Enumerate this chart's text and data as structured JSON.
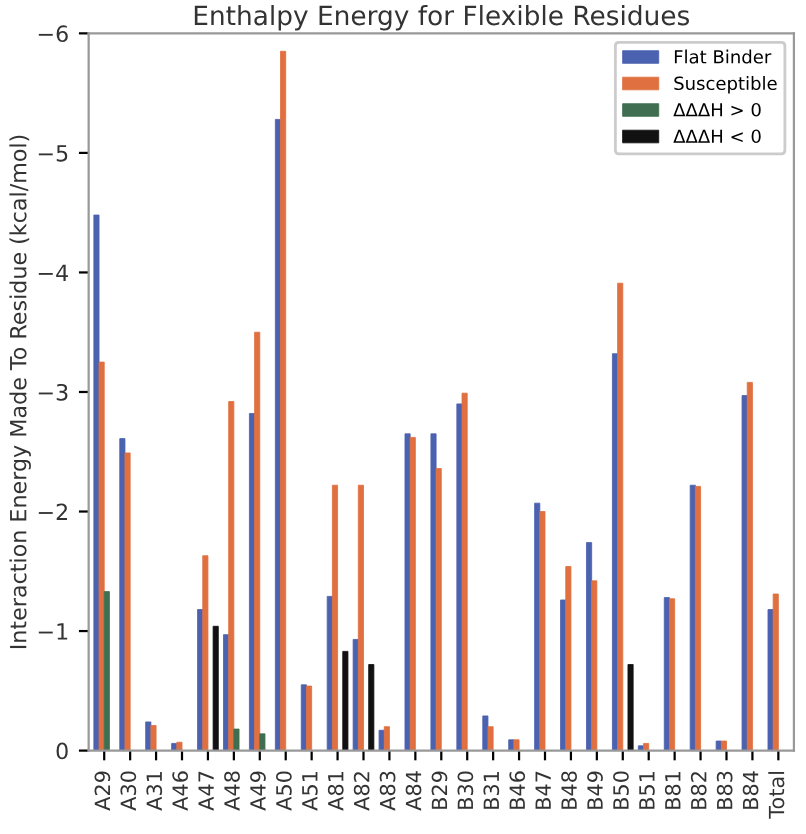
{
  "chart_data": {
    "type": "bar",
    "title": "Enthalpy Energy for Flexible Residues",
    "ylabel": "Interaction Energy Made To Residue (kcal/mol)",
    "categories": [
      "A29",
      "A30",
      "A31",
      "A46",
      "A47",
      "A48",
      "A49",
      "A50",
      "A51",
      "A81",
      "A82",
      "A83",
      "A84",
      "B29",
      "B30",
      "B31",
      "B46",
      "B47",
      "B48",
      "B49",
      "B50",
      "B51",
      "B81",
      "B82",
      "B83",
      "B84",
      "Total"
    ],
    "series": [
      {
        "name": "Flat Binder",
        "color": "#4b62b0",
        "values": [
          -4.48,
          -2.61,
          -0.24,
          -0.06,
          -1.18,
          -0.97,
          -2.82,
          -5.28,
          -0.55,
          -1.29,
          -0.93,
          -0.17,
          -2.65,
          -2.65,
          -2.9,
          -0.29,
          -0.09,
          -2.07,
          -1.26,
          -1.74,
          -3.32,
          -0.04,
          -1.28,
          -2.22,
          -0.08,
          -2.97,
          -1.18
        ]
      },
      {
        "name": "Susceptible",
        "color": "#e07040",
        "values": [
          -3.25,
          -2.49,
          -0.21,
          -0.07,
          -1.63,
          -2.92,
          -3.5,
          -5.85,
          -0.54,
          -2.22,
          -2.22,
          -0.2,
          -2.62,
          -2.36,
          -2.99,
          -0.2,
          -0.09,
          -2.0,
          -1.54,
          -1.42,
          -3.91,
          -0.06,
          -1.27,
          -2.21,
          -0.08,
          -3.08,
          -1.31
        ]
      },
      {
        "name": "ΔΔΔH > 0",
        "color": "#3f6e50",
        "values": [
          -1.33,
          null,
          null,
          null,
          null,
          -0.18,
          -0.14,
          null,
          null,
          null,
          null,
          null,
          null,
          null,
          null,
          null,
          null,
          null,
          null,
          null,
          null,
          null,
          null,
          null,
          null,
          null,
          null
        ]
      },
      {
        "name": "ΔΔΔH < 0",
        "color": "#111111",
        "values": [
          null,
          null,
          null,
          null,
          -1.04,
          null,
          null,
          null,
          null,
          -0.83,
          -0.72,
          null,
          null,
          null,
          null,
          null,
          null,
          null,
          null,
          null,
          -0.72,
          null,
          null,
          null,
          null,
          null,
          null
        ]
      }
    ],
    "ylim": [
      0,
      -6
    ],
    "yticks": [
      0,
      {
        "value": -1,
        "label": "−1"
      },
      {
        "value": -2,
        "label": "−2"
      },
      {
        "value": -3,
        "label": "−3"
      },
      {
        "value": -4,
        "label": "−4"
      },
      {
        "value": -5,
        "label": "−5"
      },
      {
        "value": -6,
        "label": "−6"
      }
    ],
    "grid": false,
    "legend": "top right"
  }
}
